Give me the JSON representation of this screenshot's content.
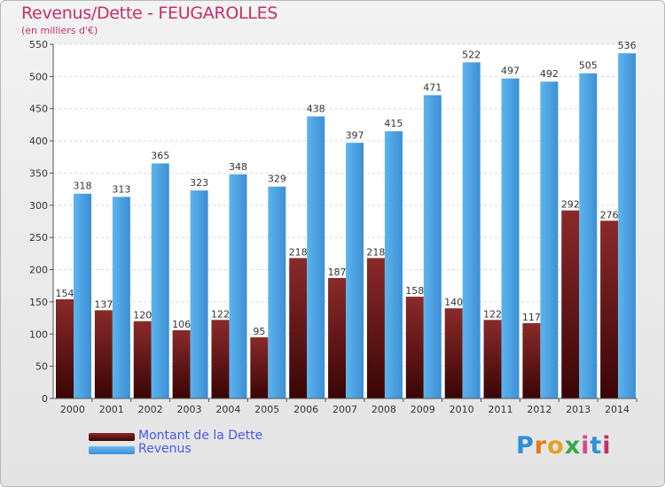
{
  "header": {
    "title": "Revenus/Dette - FEUGAROLLES",
    "subtitle": "(en milliers d'€)"
  },
  "legend": {
    "items": [
      {
        "label": "Montant de la Dette",
        "color": "#6b1a1a"
      },
      {
        "label": "Revenus",
        "color": "#4a9fe0"
      }
    ]
  },
  "logo": {
    "text": "Proxiti"
  },
  "chart_data": {
    "type": "bar",
    "categories": [
      "2000",
      "2001",
      "2002",
      "2003",
      "2004",
      "2005",
      "2006",
      "2007",
      "2008",
      "2009",
      "2010",
      "2011",
      "2012",
      "2013",
      "2014"
    ],
    "series": [
      {
        "name": "Montant de la Dette",
        "color": "#7a1e1e",
        "values": [
          154,
          137,
          120,
          106,
          122,
          95,
          218,
          187,
          218,
          158,
          140,
          122,
          117,
          292,
          276
        ]
      },
      {
        "name": "Revenus",
        "color": "#4aa0e2",
        "values": [
          318,
          313,
          365,
          323,
          348,
          329,
          438,
          397,
          415,
          471,
          522,
          497,
          492,
          505,
          536
        ]
      }
    ],
    "ylim": [
      0,
      550
    ],
    "yticks": [
      0,
      50,
      100,
      150,
      200,
      250,
      300,
      350,
      400,
      450,
      500,
      550
    ],
    "grid": true,
    "legend_position": "bottom-left"
  }
}
